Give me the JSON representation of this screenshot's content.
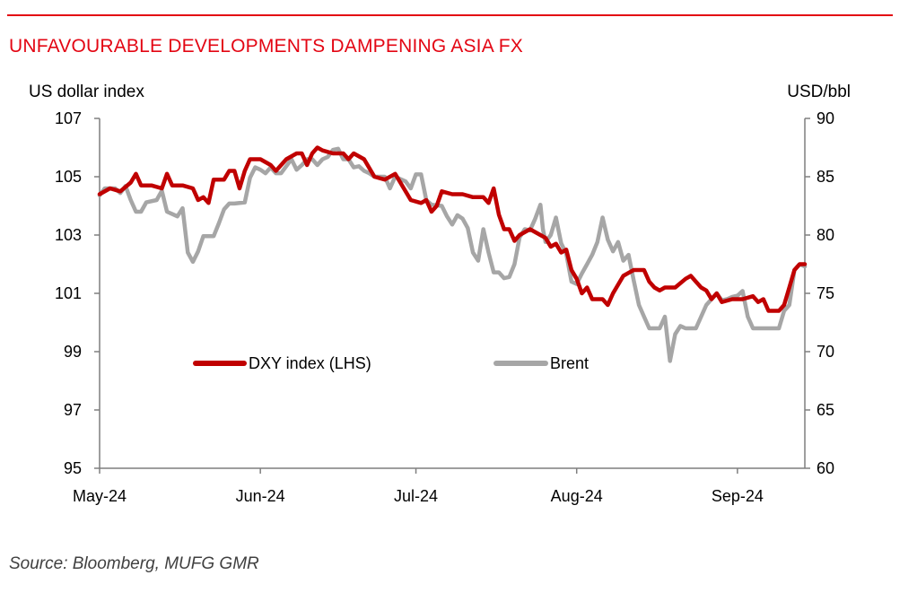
{
  "title": "UNFAVOURABLE DEVELOPMENTS DAMPENING ASIA FX",
  "source": "Source: Bloomberg, MUFG GMR",
  "colors": {
    "title": "#e30613",
    "rule": "#e30613",
    "dxy": "#c00000",
    "brent": "#a6a6a6"
  },
  "chart_data": {
    "type": "line",
    "ylabel_left": "US dollar index",
    "ylabel_right": "USD/bbl",
    "x_ticks": [
      "May-24",
      "Jun-24",
      "Jul-24",
      "Aug-24",
      "Sep-24"
    ],
    "x_tick_days": [
      1,
      32,
      62,
      93,
      124
    ],
    "y_left": {
      "min": 95,
      "max": 107,
      "ticks": [
        "95",
        "97",
        "99",
        "101",
        "103",
        "105",
        "107"
      ]
    },
    "y_right": {
      "min": 60,
      "max": 90,
      "ticks": [
        "60",
        "65",
        "70",
        "75",
        "80",
        "85",
        "90"
      ]
    },
    "grid": false,
    "legend_position": "center",
    "series": [
      {
        "name": "DXY index (LHS)",
        "axis": "left",
        "color": "#c00000",
        "points": [
          [
            1,
            104.4
          ],
          [
            3,
            104.6
          ],
          [
            5,
            104.5
          ],
          [
            7,
            104.8
          ],
          [
            8,
            105.1
          ],
          [
            9,
            104.7
          ],
          [
            11,
            104.7
          ],
          [
            13,
            104.6
          ],
          [
            14,
            105.1
          ],
          [
            15,
            104.7
          ],
          [
            17,
            104.7
          ],
          [
            19,
            104.6
          ],
          [
            20,
            104.2
          ],
          [
            21,
            104.3
          ],
          [
            22,
            104.1
          ],
          [
            23,
            104.9
          ],
          [
            25,
            104.9
          ],
          [
            26,
            105.2
          ],
          [
            27,
            105.2
          ],
          [
            28,
            104.6
          ],
          [
            29,
            105.2
          ],
          [
            30,
            105.6
          ],
          [
            32,
            105.6
          ],
          [
            34,
            105.4
          ],
          [
            35,
            105.2
          ],
          [
            37,
            105.6
          ],
          [
            39,
            105.8
          ],
          [
            40,
            105.8
          ],
          [
            41,
            105.4
          ],
          [
            42,
            105.8
          ],
          [
            43,
            106.0
          ],
          [
            44,
            105.9
          ],
          [
            46,
            105.8
          ],
          [
            48,
            105.8
          ],
          [
            49,
            105.6
          ],
          [
            50,
            105.8
          ],
          [
            52,
            105.6
          ],
          [
            54,
            105.0
          ],
          [
            56,
            104.9
          ],
          [
            58,
            105.1
          ],
          [
            59,
            104.8
          ],
          [
            61,
            104.2
          ],
          [
            63,
            104.1
          ],
          [
            64,
            104.2
          ],
          [
            65,
            103.8
          ],
          [
            66,
            104.0
          ],
          [
            67,
            104.5
          ],
          [
            69,
            104.4
          ],
          [
            71,
            104.4
          ],
          [
            73,
            104.3
          ],
          [
            75,
            104.3
          ],
          [
            76,
            104.1
          ],
          [
            77,
            104.6
          ],
          [
            78,
            103.7
          ],
          [
            79,
            103.2
          ],
          [
            80,
            103.2
          ],
          [
            81,
            102.8
          ],
          [
            82,
            103.0
          ],
          [
            84,
            103.2
          ],
          [
            86,
            103.0
          ],
          [
            87,
            102.9
          ],
          [
            88,
            102.6
          ],
          [
            89,
            102.7
          ],
          [
            90,
            102.4
          ],
          [
            91,
            102.5
          ],
          [
            92,
            101.8
          ],
          [
            93,
            101.5
          ],
          [
            94,
            101.0
          ],
          [
            95,
            101.2
          ],
          [
            96,
            100.8
          ],
          [
            98,
            100.8
          ],
          [
            99,
            100.6
          ],
          [
            100,
            101.0
          ],
          [
            102,
            101.6
          ],
          [
            103,
            101.7
          ],
          [
            104,
            101.8
          ],
          [
            106,
            101.8
          ],
          [
            107,
            101.4
          ],
          [
            108,
            101.2
          ],
          [
            109,
            101.1
          ],
          [
            110,
            101.2
          ],
          [
            112,
            101.2
          ],
          [
            114,
            101.5
          ],
          [
            115,
            101.6
          ],
          [
            116,
            101.4
          ],
          [
            117,
            101.2
          ],
          [
            118,
            101.1
          ],
          [
            119,
            100.8
          ],
          [
            120,
            101.0
          ],
          [
            121,
            100.7
          ],
          [
            123,
            100.8
          ],
          [
            125,
            100.8
          ],
          [
            127,
            100.9
          ],
          [
            128,
            100.7
          ],
          [
            129,
            100.8
          ],
          [
            130,
            100.4
          ],
          [
            132,
            100.4
          ],
          [
            133,
            100.6
          ],
          [
            134,
            101.2
          ],
          [
            135,
            101.8
          ],
          [
            136,
            102.0
          ],
          [
            137,
            102.0
          ]
        ]
      },
      {
        "name": "Brent",
        "axis": "right",
        "color": "#a6a6a6",
        "points": [
          [
            1,
            83.4
          ],
          [
            2,
            84.0
          ],
          [
            4,
            84.0
          ],
          [
            5,
            83.6
          ],
          [
            6,
            84.2
          ],
          [
            7,
            83.0
          ],
          [
            8,
            82.0
          ],
          [
            9,
            82.0
          ],
          [
            10,
            82.8
          ],
          [
            12,
            83.0
          ],
          [
            13,
            83.8
          ],
          [
            14,
            82.0
          ],
          [
            15,
            81.8
          ],
          [
            16,
            81.6
          ],
          [
            17,
            82.3
          ],
          [
            18,
            78.5
          ],
          [
            19,
            77.7
          ],
          [
            20,
            78.6
          ],
          [
            21,
            79.9
          ],
          [
            22,
            79.9
          ],
          [
            23,
            79.9
          ],
          [
            24,
            81.0
          ],
          [
            25,
            82.2
          ],
          [
            26,
            82.7
          ],
          [
            27,
            82.7
          ],
          [
            29,
            82.8
          ],
          [
            30,
            84.9
          ],
          [
            31,
            85.8
          ],
          [
            32,
            85.6
          ],
          [
            33,
            85.3
          ],
          [
            34,
            85.8
          ],
          [
            35,
            85.3
          ],
          [
            36,
            85.3
          ],
          [
            38,
            86.5
          ],
          [
            39,
            85.6
          ],
          [
            40,
            86.0
          ],
          [
            41,
            86.5
          ],
          [
            42,
            86.5
          ],
          [
            43,
            86.0
          ],
          [
            44,
            86.5
          ],
          [
            45,
            86.7
          ],
          [
            46,
            87.3
          ],
          [
            47,
            87.4
          ],
          [
            48,
            86.5
          ],
          [
            49,
            86.5
          ],
          [
            50,
            85.8
          ],
          [
            51,
            85.9
          ],
          [
            52,
            85.5
          ],
          [
            53,
            85.3
          ],
          [
            54,
            85.0
          ],
          [
            56,
            85.0
          ],
          [
            57,
            84.0
          ],
          [
            58,
            85.0
          ],
          [
            60,
            84.6
          ],
          [
            61,
            84.0
          ],
          [
            62,
            85.2
          ],
          [
            63,
            85.2
          ],
          [
            64,
            83.0
          ],
          [
            65,
            82.6
          ],
          [
            67,
            82.5
          ],
          [
            68,
            81.6
          ],
          [
            69,
            80.9
          ],
          [
            70,
            81.7
          ],
          [
            71,
            81.4
          ],
          [
            72,
            80.6
          ],
          [
            73,
            78.5
          ],
          [
            74,
            77.8
          ],
          [
            75,
            80.5
          ],
          [
            76,
            78.5
          ],
          [
            77,
            76.8
          ],
          [
            78,
            76.8
          ],
          [
            79,
            76.3
          ],
          [
            80,
            76.4
          ],
          [
            81,
            77.5
          ],
          [
            82,
            79.8
          ],
          [
            83,
            80.5
          ],
          [
            84,
            80.4
          ],
          [
            85,
            81.4
          ],
          [
            86,
            82.6
          ],
          [
            86.5,
            80.5
          ],
          [
            87,
            79.4
          ],
          [
            88,
            80.0
          ],
          [
            89,
            81.5
          ],
          [
            90,
            79.3
          ],
          [
            91,
            78.4
          ],
          [
            92,
            76.0
          ],
          [
            93,
            75.8
          ],
          [
            94,
            76.7
          ],
          [
            95,
            77.5
          ],
          [
            96,
            78.3
          ],
          [
            97,
            79.4
          ],
          [
            98,
            81.5
          ],
          [
            99,
            79.6
          ],
          [
            100,
            78.6
          ],
          [
            101,
            79.4
          ],
          [
            102,
            77.8
          ],
          [
            103,
            78.3
          ],
          [
            104,
            76.1
          ],
          [
            105,
            74.0
          ],
          [
            106,
            73.0
          ],
          [
            107,
            72.0
          ],
          [
            109,
            72.0
          ],
          [
            110,
            73.0
          ],
          [
            111,
            69.2
          ],
          [
            112,
            71.5
          ],
          [
            113,
            72.2
          ],
          [
            114,
            72.0
          ],
          [
            116,
            72.0
          ],
          [
            117,
            73.0
          ],
          [
            118,
            74.0
          ],
          [
            119,
            74.5
          ],
          [
            120,
            75.0
          ],
          [
            121,
            74.4
          ],
          [
            122,
            74.5
          ],
          [
            123,
            74.7
          ],
          [
            124,
            74.8
          ],
          [
            125,
            75.2
          ],
          [
            126,
            73.0
          ],
          [
            127,
            72.0
          ],
          [
            128,
            72.0
          ],
          [
            129,
            72.0
          ],
          [
            130,
            72.0
          ],
          [
            131,
            72.0
          ],
          [
            132,
            72.0
          ],
          [
            133,
            73.5
          ],
          [
            134,
            74.0
          ],
          [
            135,
            77.0
          ],
          [
            136,
            77.5
          ],
          [
            137,
            77.3
          ]
        ]
      }
    ]
  }
}
